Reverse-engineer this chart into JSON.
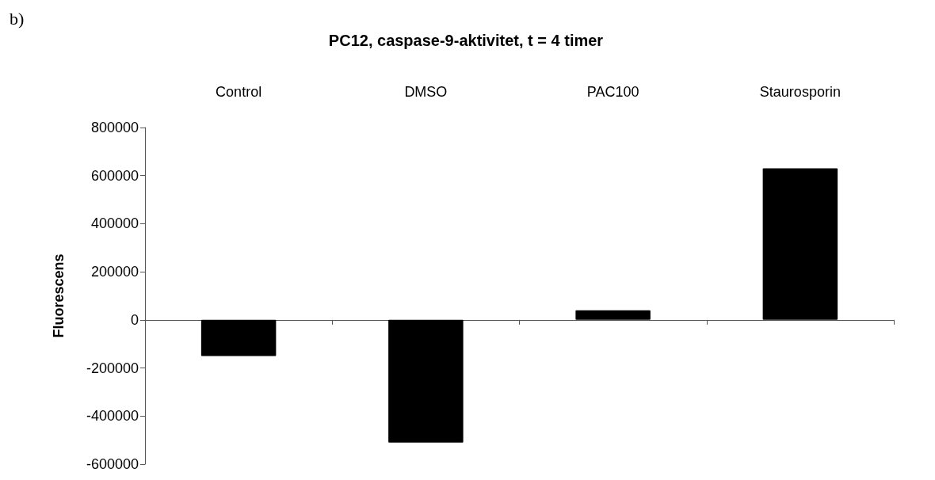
{
  "chart_data": {
    "type": "bar",
    "title": "PC12, caspase-9-aktivitet, t = 4 timer",
    "ylabel": "Fluorescens",
    "annotations": [
      "b)"
    ],
    "categories": [
      "Control",
      "DMSO",
      "PAC100",
      "Staurosporin"
    ],
    "values": [
      -150000,
      -510000,
      40000,
      630000
    ],
    "color": "#000000",
    "ylim": [
      -600000,
      800000
    ],
    "yticks": [
      -600000,
      -400000,
      -200000,
      0,
      200000,
      400000,
      600000,
      800000
    ]
  }
}
